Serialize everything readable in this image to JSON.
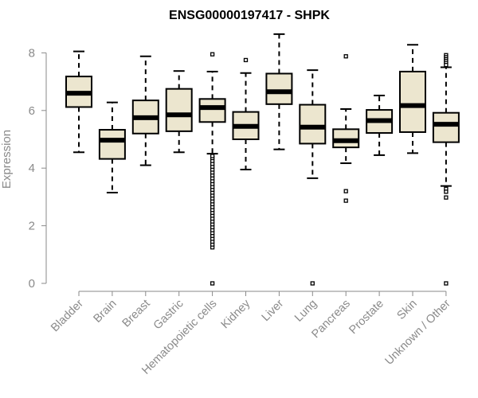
{
  "chart_data": {
    "type": "boxplot",
    "title": "ENSG00000197417 - SHPK",
    "xlabel": "",
    "ylabel": "Expression",
    "ylim": [
      0,
      8.7
    ],
    "yticks": [
      0,
      2,
      4,
      6,
      8
    ],
    "categories": [
      "Bladder",
      "Brain",
      "Breast",
      "Gastric",
      "Hematopoietic cells",
      "Kidney",
      "Liver",
      "Lung",
      "Pancreas",
      "Prostate",
      "Skin",
      "Unknown / Other"
    ],
    "series": [
      {
        "name": "Bladder",
        "whisker_low": 4.55,
        "q1": 6.12,
        "median": 6.6,
        "q3": 7.18,
        "whisker_high": 8.05,
        "outliers": []
      },
      {
        "name": "Brain",
        "whisker_low": 3.15,
        "q1": 4.32,
        "median": 4.97,
        "q3": 5.33,
        "whisker_high": 6.28,
        "outliers": []
      },
      {
        "name": "Breast",
        "whisker_low": 4.1,
        "q1": 5.2,
        "median": 5.75,
        "q3": 6.35,
        "whisker_high": 7.88,
        "outliers": []
      },
      {
        "name": "Gastric",
        "whisker_low": 4.55,
        "q1": 5.28,
        "median": 5.85,
        "q3": 6.75,
        "whisker_high": 7.37,
        "outliers": []
      },
      {
        "name": "Hematopoietic cells",
        "whisker_low": 4.5,
        "q1": 5.6,
        "median": 6.1,
        "q3": 6.4,
        "whisker_high": 7.35,
        "outliers": [
          7.95,
          0,
          1.25,
          1.35,
          1.45,
          1.55,
          1.65,
          1.75,
          1.85,
          1.95,
          2.05,
          2.15,
          2.25,
          2.35,
          2.45,
          2.55,
          2.65,
          2.75,
          2.85,
          2.95,
          3.05,
          3.15,
          3.25,
          3.35,
          3.45,
          3.55,
          3.65,
          3.75,
          3.85,
          3.95,
          4.05,
          4.15,
          4.25,
          4.35,
          4.42
        ]
      },
      {
        "name": "Kidney",
        "whisker_low": 3.95,
        "q1": 5.0,
        "median": 5.45,
        "q3": 5.95,
        "whisker_high": 7.3,
        "outliers": [
          7.75
        ]
      },
      {
        "name": "Liver",
        "whisker_low": 4.65,
        "q1": 6.22,
        "median": 6.65,
        "q3": 7.28,
        "whisker_high": 8.65,
        "outliers": []
      },
      {
        "name": "Lung",
        "whisker_low": 3.65,
        "q1": 4.85,
        "median": 5.42,
        "q3": 6.2,
        "whisker_high": 7.4,
        "outliers": [
          0
        ]
      },
      {
        "name": "Pancreas",
        "whisker_low": 4.17,
        "q1": 4.72,
        "median": 4.95,
        "q3": 5.35,
        "whisker_high": 6.05,
        "outliers": [
          7.88,
          3.2,
          2.87
        ]
      },
      {
        "name": "Prostate",
        "whisker_low": 4.45,
        "q1": 5.22,
        "median": 5.65,
        "q3": 6.02,
        "whisker_high": 6.52,
        "outliers": []
      },
      {
        "name": "Skin",
        "whisker_low": 4.52,
        "q1": 5.25,
        "median": 6.17,
        "q3": 7.35,
        "whisker_high": 8.28,
        "outliers": []
      },
      {
        "name": "Unknown / Other",
        "whisker_low": 3.38,
        "q1": 4.9,
        "median": 5.52,
        "q3": 5.92,
        "whisker_high": 7.5,
        "outliers": [
          7.92,
          7.85,
          7.78,
          7.72,
          7.65,
          7.58,
          3.28,
          3.18,
          2.98,
          0
        ]
      }
    ]
  }
}
